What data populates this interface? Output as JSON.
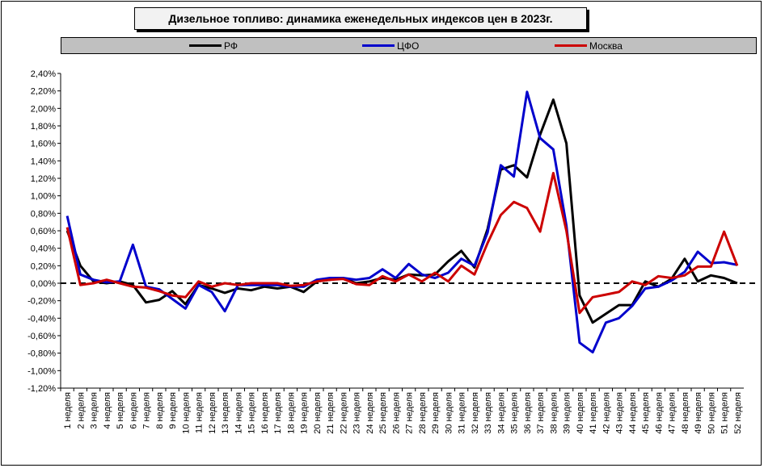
{
  "chart_data": {
    "type": "line",
    "title": "Дизельное топливо: динамика еженедельных индексов цен в 2023г.",
    "xlabel": "",
    "ylabel": "",
    "ylim": [
      -1.2,
      2.4
    ],
    "y_ticks": [
      "2,40%",
      "2,20%",
      "2,00%",
      "1,80%",
      "1,60%",
      "1,40%",
      "1,20%",
      "1,00%",
      "0,80%",
      "0,60%",
      "0,40%",
      "0,20%",
      "0,00%",
      "-0,20%",
      "-0,40%",
      "-0,60%",
      "-0,80%",
      "-1,00%",
      "-1,20%"
    ],
    "grid": false,
    "legend_position": "top",
    "categories": [
      "1 неделя",
      "2 неделя",
      "3 неделя",
      "4 неделя",
      "5 неделя",
      "6 неделя",
      "7 неделя",
      "8 неделя",
      "9 неделя",
      "10 неделя",
      "11 неделя",
      "12 неделя",
      "13 неделя",
      "14 неделя",
      "15 неделя",
      "16 неделя",
      "17 неделя",
      "18 неделя",
      "19 неделя",
      "20 неделя",
      "21 неделя",
      "22 неделя",
      "23 неделя",
      "24 неделя",
      "25 неделя",
      "26 неделя",
      "27 неделя",
      "28 неделя",
      "29 неделя",
      "30 неделя",
      "31 неделя",
      "32 неделя",
      "33 неделя",
      "34 неделя",
      "35 неделя",
      "36 неделя",
      "37 неделя",
      "38 неделя",
      "39 неделя",
      "40 неделя",
      "41 неделя",
      "42 неделя",
      "43 неделя",
      "44 неделя",
      "45 неделя",
      "46 неделя",
      "47 неделя",
      "48 неделя",
      "49 неделя",
      "50 неделя",
      "51 неделя",
      "52 неделя"
    ],
    "series": [
      {
        "name": "РФ",
        "color": "#000000",
        "values": [
          0.6,
          0.2,
          0.02,
          0.0,
          0.02,
          -0.02,
          -0.22,
          -0.19,
          -0.09,
          -0.24,
          -0.02,
          -0.06,
          -0.11,
          -0.06,
          -0.08,
          -0.04,
          -0.06,
          -0.04,
          -0.1,
          0.02,
          0.04,
          0.06,
          0.0,
          0.02,
          0.06,
          0.04,
          0.1,
          0.09,
          0.1,
          0.25,
          0.37,
          0.18,
          0.62,
          1.3,
          1.35,
          1.21,
          1.7,
          2.1,
          1.6,
          -0.14,
          -0.45,
          -0.35,
          -0.25,
          -0.25,
          0.02,
          -0.04,
          0.05,
          0.28,
          0.02,
          0.09,
          0.06,
          0.0
        ]
      },
      {
        "name": "ЦФО",
        "color": "#0000cc",
        "values": [
          0.77,
          0.1,
          0.04,
          0.01,
          0.02,
          0.44,
          -0.04,
          -0.07,
          -0.18,
          -0.29,
          -0.02,
          -0.1,
          -0.32,
          -0.02,
          -0.02,
          -0.02,
          -0.02,
          -0.04,
          -0.04,
          0.04,
          0.06,
          0.06,
          0.04,
          0.06,
          0.16,
          0.06,
          0.22,
          0.1,
          0.06,
          0.12,
          0.28,
          0.2,
          0.58,
          1.35,
          1.22,
          2.19,
          1.66,
          1.53,
          0.66,
          -0.68,
          -0.79,
          -0.45,
          -0.4,
          -0.26,
          -0.06,
          -0.04,
          0.03,
          0.13,
          0.36,
          0.23,
          0.24,
          0.21
        ]
      },
      {
        "name": "Москва",
        "color": "#cc0000",
        "values": [
          0.64,
          -0.02,
          0.0,
          0.04,
          0.0,
          -0.04,
          -0.05,
          -0.09,
          -0.14,
          -0.16,
          0.02,
          -0.04,
          0.0,
          -0.02,
          0.0,
          0.0,
          0.0,
          -0.03,
          -0.02,
          0.02,
          0.04,
          0.05,
          -0.01,
          -0.02,
          0.08,
          0.02,
          0.1,
          0.02,
          0.12,
          0.02,
          0.2,
          0.1,
          0.46,
          0.78,
          0.93,
          0.86,
          0.59,
          1.26,
          0.6,
          -0.34,
          -0.16,
          -0.13,
          -0.1,
          0.02,
          -0.02,
          0.08,
          0.06,
          0.09,
          0.19,
          0.19,
          0.59,
          0.2
        ]
      }
    ]
  }
}
